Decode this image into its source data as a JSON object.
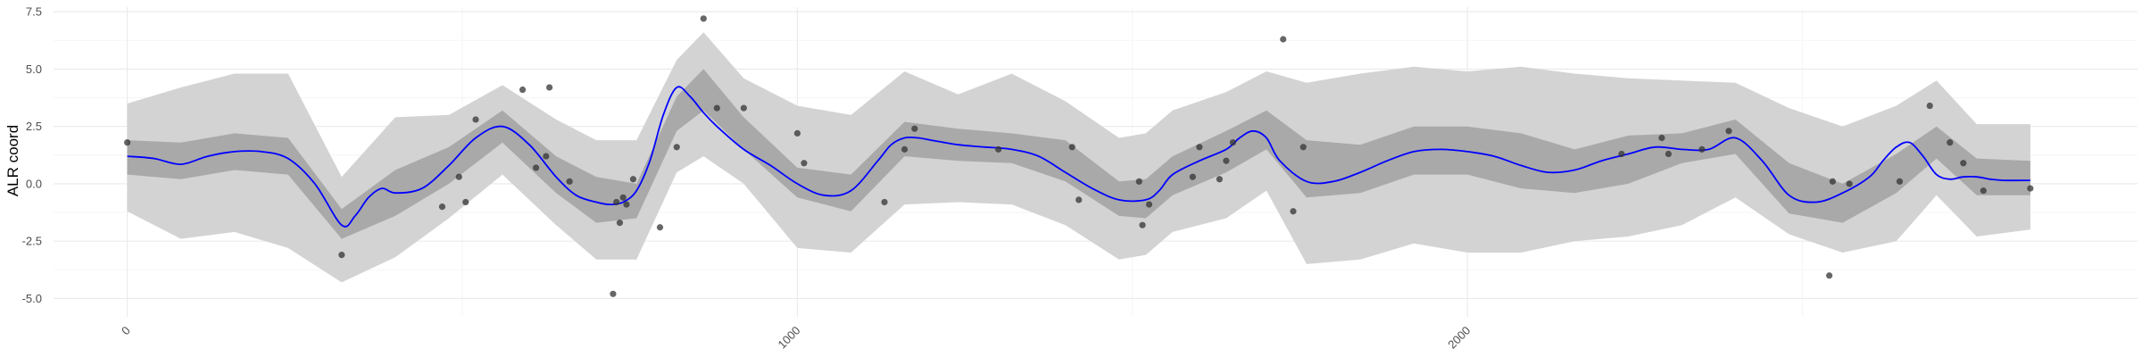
{
  "chart_data": {
    "type": "line",
    "title": "",
    "xlabel": "",
    "ylabel": "ALR coord",
    "xlim": [
      -110,
      3000
    ],
    "ylim": [
      -5.8,
      7.7
    ],
    "x_ticks": [
      0,
      1000,
      2000
    ],
    "x_tick_labels": [
      "0",
      "1000",
      "2000"
    ],
    "y_ticks": [
      -5.0,
      -2.5,
      0.0,
      2.5,
      5.0,
      7.5
    ],
    "y_tick_labels": [
      "-5.0",
      "-2.5",
      "0.0",
      "2.5",
      "5.0",
      "7.5"
    ],
    "grid": true,
    "legend": "none",
    "colors": {
      "outer_band": "#d3d3d3",
      "inner_band": "#a9a9a9",
      "mean_line": "#0000ff",
      "points": "#333333",
      "grid_major": "#ebebeb",
      "grid_minor": "#f5f5f5"
    },
    "series": [
      {
        "kind": "posterior_mean",
        "x": [
          0,
          40,
          80,
          120,
          160,
          200,
          240,
          280,
          320,
          340,
          360,
          380,
          400,
          440,
          480,
          520,
          560,
          600,
          640,
          670,
          700,
          720,
          740,
          760,
          780,
          800,
          820,
          840,
          860,
          880,
          920,
          960,
          1000,
          1040,
          1080,
          1120,
          1140,
          1160,
          1180,
          1200,
          1240,
          1280,
          1320,
          1360,
          1400,
          1440,
          1480,
          1520,
          1540,
          1560,
          1600,
          1640,
          1660,
          1680,
          1700,
          1720,
          1760,
          1800,
          1840,
          1880,
          1920,
          1960,
          2000,
          2040,
          2080,
          2120,
          2160,
          2200,
          2240,
          2280,
          2320,
          2360,
          2400,
          2440,
          2480,
          2520,
          2560,
          2600,
          2620,
          2640,
          2660,
          2680,
          2700,
          2720,
          2740,
          2760,
          2780,
          2800,
          2840
        ],
        "y": [
          1.2,
          1.1,
          0.85,
          1.2,
          1.4,
          1.4,
          1.1,
          0.0,
          -1.8,
          -1.4,
          -0.6,
          -0.2,
          -0.4,
          -0.2,
          0.8,
          2.0,
          2.5,
          1.7,
          0.3,
          -0.5,
          -0.8,
          -0.9,
          -0.8,
          -0.3,
          1.0,
          3.0,
          4.2,
          3.8,
          3.1,
          2.5,
          1.5,
          0.8,
          0.0,
          -0.5,
          -0.3,
          1.0,
          1.7,
          2.0,
          2.0,
          1.9,
          1.7,
          1.6,
          1.5,
          1.2,
          0.5,
          -0.2,
          -0.7,
          -0.7,
          -0.3,
          0.4,
          1.0,
          1.5,
          2.0,
          2.3,
          2.0,
          1.0,
          0.1,
          0.1,
          0.5,
          1.0,
          1.4,
          1.5,
          1.4,
          1.2,
          0.8,
          0.5,
          0.6,
          1.0,
          1.3,
          1.6,
          1.5,
          1.5,
          2.0,
          1.0,
          -0.5,
          -0.8,
          -0.4,
          0.3,
          1.0,
          1.6,
          1.8,
          1.2,
          0.4,
          0.2,
          0.3,
          0.3,
          0.2,
          0.15,
          0.15
        ]
      },
      {
        "kind": "inner_band",
        "x": [
          0,
          80,
          160,
          240,
          320,
          400,
          480,
          560,
          640,
          700,
          760,
          820,
          860,
          920,
          1000,
          1080,
          1160,
          1240,
          1320,
          1400,
          1480,
          1520,
          1560,
          1640,
          1700,
          1760,
          1840,
          1920,
          2000,
          2080,
          2160,
          2240,
          2320,
          2400,
          2480,
          2560,
          2640,
          2700,
          2760,
          2840
        ],
        "lower": [
          0.4,
          0.2,
          0.6,
          0.4,
          -2.4,
          -1.4,
          0.0,
          1.8,
          -0.4,
          -1.7,
          -1.5,
          2.3,
          3.2,
          1.5,
          -0.6,
          -1.2,
          1.2,
          1.0,
          0.9,
          0.1,
          -1.4,
          -1.5,
          -0.5,
          0.5,
          1.5,
          -0.6,
          -0.4,
          0.4,
          0.4,
          -0.2,
          -0.4,
          0.0,
          0.9,
          1.3,
          -1.3,
          -1.7,
          -0.4,
          1.1,
          -0.5,
          -0.5
        ],
        "upper": [
          1.9,
          1.8,
          2.2,
          2.0,
          -1.1,
          0.6,
          1.6,
          3.2,
          1.2,
          0.3,
          0.0,
          3.8,
          5.0,
          2.9,
          0.7,
          0.4,
          2.7,
          2.4,
          2.2,
          1.9,
          0.1,
          0.2,
          1.2,
          2.3,
          3.2,
          1.9,
          1.7,
          2.5,
          2.5,
          2.2,
          1.5,
          2.1,
          2.2,
          2.8,
          0.9,
          0.0,
          1.3,
          2.5,
          1.1,
          1.0
        ]
      },
      {
        "kind": "outer_band",
        "x": [
          0,
          80,
          160,
          240,
          320,
          400,
          480,
          560,
          640,
          700,
          760,
          820,
          860,
          920,
          1000,
          1080,
          1160,
          1240,
          1320,
          1400,
          1480,
          1520,
          1560,
          1640,
          1700,
          1760,
          1840,
          1920,
          2000,
          2080,
          2160,
          2240,
          2320,
          2400,
          2480,
          2560,
          2640,
          2700,
          2760,
          2840
        ],
        "lower": [
          -1.2,
          -2.4,
          -2.1,
          -2.8,
          -4.3,
          -3.2,
          -1.5,
          0.4,
          -1.8,
          -3.3,
          -3.3,
          0.5,
          1.2,
          0.0,
          -2.8,
          -3.0,
          -0.9,
          -0.8,
          -0.9,
          -1.8,
          -3.3,
          -3.1,
          -2.1,
          -1.5,
          -0.3,
          -3.5,
          -3.3,
          -2.6,
          -3.0,
          -3.0,
          -2.5,
          -2.3,
          -1.8,
          -0.6,
          -2.2,
          -3.0,
          -2.5,
          -0.5,
          -2.3,
          -2.0
        ],
        "upper": [
          3.5,
          4.2,
          4.8,
          4.8,
          0.3,
          2.9,
          3.0,
          4.3,
          2.8,
          1.9,
          1.9,
          5.4,
          6.6,
          4.6,
          3.4,
          3.0,
          4.9,
          3.9,
          4.8,
          3.6,
          2.0,
          2.2,
          3.2,
          4.0,
          4.9,
          4.4,
          4.8,
          5.1,
          4.9,
          5.1,
          4.8,
          4.6,
          4.5,
          4.4,
          3.3,
          2.5,
          3.4,
          4.5,
          2.6,
          2.6
        ]
      },
      {
        "kind": "observations",
        "x": [
          0,
          320,
          470,
          495,
          505,
          520,
          590,
          610,
          625,
          630,
          660,
          725,
          730,
          735,
          740,
          745,
          755,
          795,
          820,
          860,
          880,
          920,
          1000,
          1010,
          1130,
          1160,
          1175,
          1300,
          1410,
          1420,
          1510,
          1515,
          1525,
          1590,
          1600,
          1630,
          1640,
          1650,
          1725,
          1740,
          1755,
          2230,
          2290,
          2300,
          2350,
          2390,
          2540,
          2545,
          2570,
          2645,
          2690,
          2720,
          2740,
          2770,
          2840
        ],
        "y": [
          1.8,
          -3.1,
          -1.0,
          0.3,
          -0.8,
          2.8,
          4.1,
          0.7,
          1.2,
          4.2,
          0.1,
          -4.8,
          -0.8,
          -1.7,
          -0.6,
          -0.9,
          0.2,
          -1.9,
          1.6,
          7.2,
          3.3,
          3.3,
          2.2,
          0.9,
          -0.8,
          1.5,
          2.4,
          1.5,
          1.6,
          -0.7,
          0.1,
          -1.8,
          -0.9,
          0.3,
          1.6,
          0.2,
          1.0,
          1.8,
          6.3,
          -1.2,
          1.6,
          1.3,
          2.0,
          1.3,
          1.5,
          2.3,
          -4.0,
          0.1,
          0.0,
          0.1,
          3.4,
          1.8,
          0.9,
          -0.3,
          -0.2
        ]
      }
    ]
  }
}
